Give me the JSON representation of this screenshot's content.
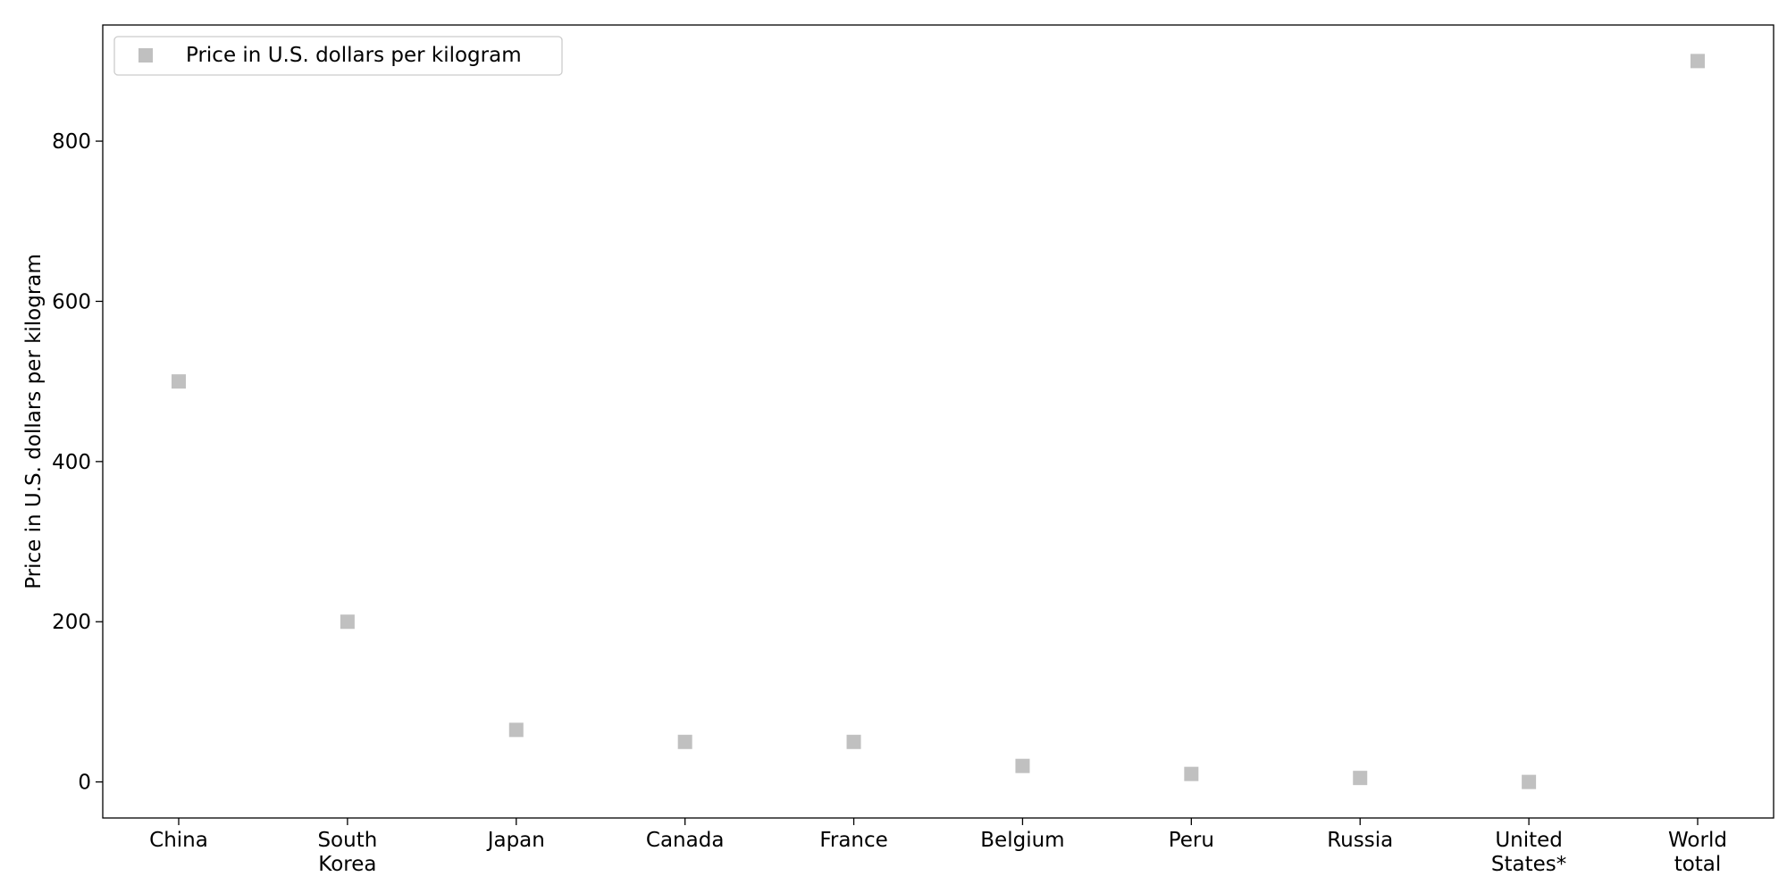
{
  "chart_data": {
    "type": "scatter",
    "categories": [
      "China",
      "South\nKorea",
      "Japan",
      "Canada",
      "France",
      "Belgium",
      "Peru",
      "Russia",
      "United\nStates*",
      "World\ntotal"
    ],
    "series": [
      {
        "name": "Price in U.S. dollars per kilogram",
        "values": [
          500,
          200,
          65,
          50,
          50,
          20,
          10,
          5,
          0,
          900
        ],
        "color": "#c0c0c0",
        "marker": "square"
      }
    ],
    "title": "",
    "xlabel": "",
    "ylabel": "Price in U.S. dollars per kilogram",
    "ylim": [
      -45,
      945
    ],
    "yticks": [
      0,
      200,
      400,
      600,
      800
    ],
    "grid": false,
    "legend_position": "top-left"
  }
}
